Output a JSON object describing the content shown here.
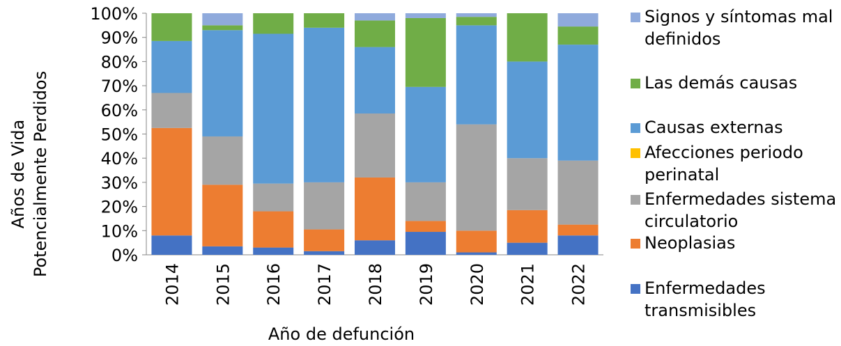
{
  "chart_data": {
    "type": "stacked_bar_100",
    "x_label": "Año de defunción",
    "y_label": "Años de Vida Potencialmente Perdidos",
    "categories": [
      "2014",
      "2015",
      "2016",
      "2017",
      "2018",
      "2019",
      "2020",
      "2021",
      "2022"
    ],
    "series": [
      {
        "name": "Enfermedades transmisibles",
        "color": "#4472c4",
        "values": [
          8,
          3.5,
          3,
          1.5,
          6,
          9.5,
          1,
          5,
          8
        ]
      },
      {
        "name": "Neoplasias",
        "color": "#ed7d31",
        "values": [
          44.5,
          25.5,
          15,
          9,
          26,
          4.5,
          9,
          13.5,
          4.5
        ]
      },
      {
        "name": "Enfermedades sistema circulatorio",
        "color": "#a5a5a5",
        "values": [
          14.5,
          20,
          11.5,
          19.5,
          26.5,
          16,
          44,
          21.5,
          26.5
        ]
      },
      {
        "name": "Afecciones periodo perinatal",
        "color": "#ffc000",
        "values": [
          0,
          0,
          0,
          0,
          0,
          0,
          0,
          0,
          0
        ]
      },
      {
        "name": "Causas externas",
        "color": "#5b9bd5",
        "values": [
          21.5,
          44,
          62,
          64,
          27.5,
          39.5,
          41,
          40,
          48
        ]
      },
      {
        "name": "Las demás causas",
        "color": "#70ad47",
        "values": [
          11.5,
          2,
          8.5,
          6,
          11,
          28.5,
          3.5,
          20,
          7.5
        ]
      },
      {
        "name": "Signos y síntomas mal definidos",
        "color": "#8faadc",
        "values": [
          0,
          5,
          0,
          0,
          3,
          2,
          1.5,
          0,
          5.5
        ]
      }
    ],
    "ylim": [
      0,
      100
    ],
    "yticks": [
      {
        "value": 0,
        "label": "0%"
      },
      {
        "value": 10,
        "label": "10%"
      },
      {
        "value": 20,
        "label": "20%"
      },
      {
        "value": 30,
        "label": "30%"
      },
      {
        "value": 40,
        "label": "40%"
      },
      {
        "value": 50,
        "label": "50%"
      },
      {
        "value": 60,
        "label": "60%"
      },
      {
        "value": 70,
        "label": "70%"
      },
      {
        "value": 80,
        "label": "80%"
      },
      {
        "value": 90,
        "label": "90%"
      },
      {
        "value": 100,
        "label": "100%"
      }
    ],
    "grid": false
  }
}
